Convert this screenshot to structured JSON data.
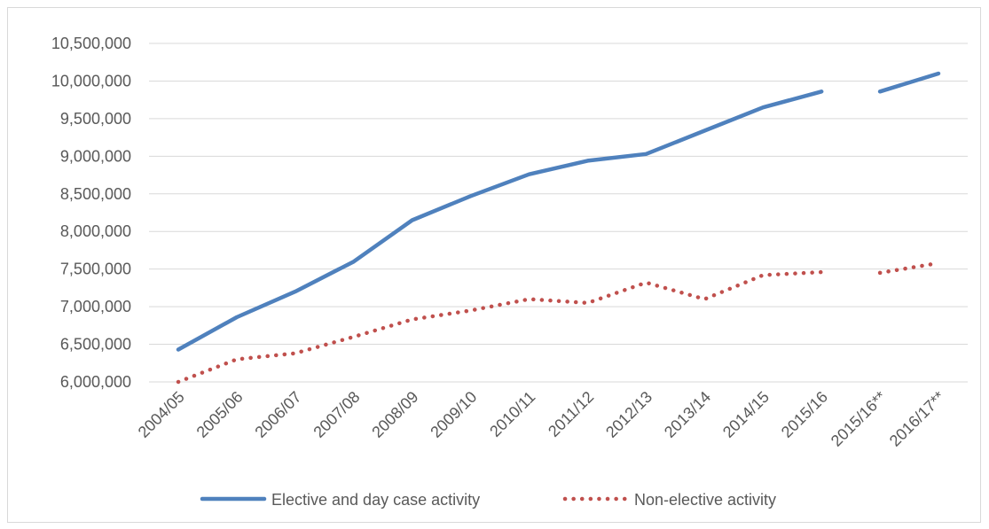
{
  "chart_data": {
    "type": "line",
    "title": "",
    "xlabel": "",
    "ylabel": "",
    "ylim": [
      6000000,
      10500000
    ],
    "y_tick_step": 500000,
    "grid": "horizontal",
    "legend_position": "bottom",
    "categories": [
      "2004/05",
      "2005/06",
      "2006/07",
      "2007/08",
      "2008/09",
      "2009/10",
      "2010/11",
      "2011/12",
      "2012/13",
      "2013/14",
      "2014/15",
      "2015/16",
      "2015/16**",
      "2016/17**"
    ],
    "y_tick_labels": [
      "6,000,000",
      "6,500,000",
      "7,000,000",
      "7,500,000",
      "8,000,000",
      "8,500,000",
      "9,000,000",
      "9,500,000",
      "10,000,000",
      "10,500,000"
    ],
    "series": [
      {
        "name": "Elective and day case activity",
        "color": "#4f81bd",
        "style": "solid",
        "values": [
          6430000,
          6860000,
          7200000,
          7600000,
          8150000,
          8470000,
          8760000,
          8940000,
          9030000,
          9340000,
          9650000,
          9860000,
          9860000,
          10100000
        ]
      },
      {
        "name": "Non-elective activity",
        "color": "#c0504d",
        "style": "dotted",
        "values": [
          6000000,
          6300000,
          6380000,
          6600000,
          6830000,
          6950000,
          7100000,
          7050000,
          7320000,
          7100000,
          7420000,
          7460000,
          7450000,
          7580000
        ]
      }
    ],
    "segment_break_after_index": 11
  }
}
